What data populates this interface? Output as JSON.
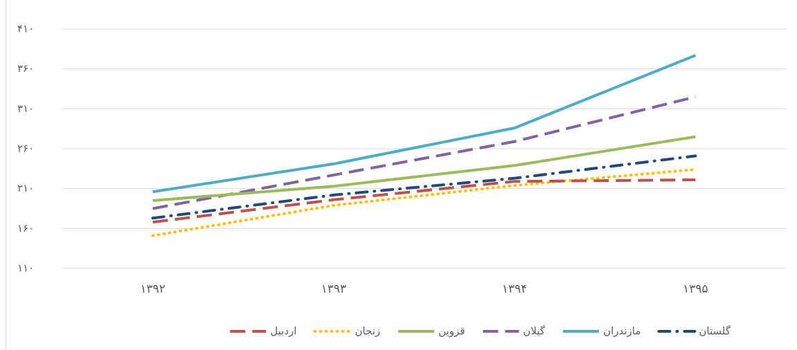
{
  "chart_data": {
    "type": "line",
    "categories": [
      "۱۳۹۲",
      "۱۳۹۳",
      "۱۳۹۴",
      "۱۳۹۵"
    ],
    "ylim": [
      110,
      410
    ],
    "yticks": [
      {
        "value": 110,
        "label": "۱۱۰"
      },
      {
        "value": 160,
        "label": "۱۶۰"
      },
      {
        "value": 210,
        "label": "۲۱۰"
      },
      {
        "value": 260,
        "label": "۲۶۰"
      },
      {
        "value": 310,
        "label": "۳۱۰"
      },
      {
        "value": 360,
        "label": "۳۶۰"
      },
      {
        "value": 410,
        "label": "۴۱۰"
      }
    ],
    "grid": true,
    "legend": "bottom",
    "series": [
      {
        "name": "گلستان",
        "color": "#1f497d",
        "dash": "dash-dot",
        "values": [
          173,
          202,
          223,
          251
        ]
      },
      {
        "name": "مازندران",
        "color": "#4bacc6",
        "dash": "solid",
        "values": [
          206,
          241,
          286,
          377
        ]
      },
      {
        "name": "گیلان",
        "color": "#8064a2",
        "dash": "dashed",
        "values": [
          185,
          227,
          269,
          325
        ]
      },
      {
        "name": "قزوین",
        "color": "#9bbb59",
        "dash": "solid",
        "values": [
          195,
          213,
          239,
          275
        ]
      },
      {
        "name": "زنجان",
        "color": "#ffc000",
        "dash": "dotted",
        "values": [
          151,
          189,
          214,
          234
        ]
      },
      {
        "name": "اردبیل",
        "color": "#c0504d",
        "dash": "dashed",
        "values": [
          168,
          196,
          219,
          221
        ]
      }
    ]
  }
}
